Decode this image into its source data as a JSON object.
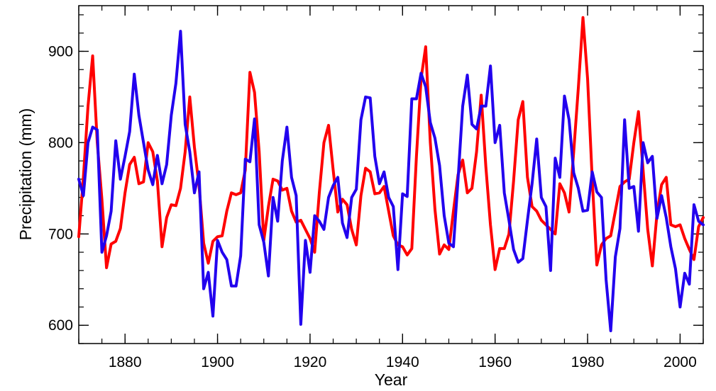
{
  "chart_data": {
    "type": "line",
    "title": "",
    "xlabel": "Year",
    "ylabel": "Precipitation (mm)",
    "xlim": [
      1870,
      2005
    ],
    "ylim": [
      580,
      950
    ],
    "x_ticks": [
      1880,
      1900,
      1920,
      1940,
      1960,
      1980,
      2000
    ],
    "y_ticks": [
      600,
      700,
      800,
      900
    ],
    "x_minor_step": 5,
    "y_minor_step": 20,
    "grid": false,
    "legend": "none",
    "colors": {
      "red_series": "#ff0000",
      "blue_series": "#2200ee",
      "axes": "#000000",
      "background": "#ffffff"
    },
    "x": [
      1870,
      1871,
      1872,
      1873,
      1874,
      1875,
      1876,
      1877,
      1878,
      1879,
      1880,
      1881,
      1882,
      1883,
      1884,
      1885,
      1886,
      1887,
      1888,
      1889,
      1890,
      1891,
      1892,
      1893,
      1894,
      1895,
      1896,
      1897,
      1898,
      1899,
      1900,
      1901,
      1902,
      1903,
      1904,
      1905,
      1906,
      1907,
      1908,
      1909,
      1910,
      1911,
      1912,
      1913,
      1914,
      1915,
      1916,
      1917,
      1918,
      1919,
      1920,
      1921,
      1922,
      1923,
      1924,
      1925,
      1926,
      1927,
      1928,
      1929,
      1930,
      1931,
      1932,
      1933,
      1934,
      1935,
      1936,
      1937,
      1938,
      1939,
      1940,
      1941,
      1942,
      1943,
      1944,
      1945,
      1946,
      1947,
      1948,
      1949,
      1950,
      1951,
      1952,
      1953,
      1954,
      1955,
      1956,
      1957,
      1958,
      1959,
      1960,
      1961,
      1962,
      1963,
      1964,
      1965,
      1966,
      1967,
      1968,
      1969,
      1970,
      1971,
      1972,
      1973,
      1974,
      1975,
      1976,
      1977,
      1978,
      1979,
      1980,
      1981,
      1982,
      1983,
      1984,
      1985,
      1986,
      1987,
      1988,
      1989,
      1990,
      1991,
      1992,
      1993,
      1994,
      1995,
      1996,
      1997,
      1998,
      1999,
      2000,
      2001,
      2002,
      2003,
      2004,
      2005
    ],
    "series": [
      {
        "color": "#ff0000",
        "values": [
          697,
          762,
          840,
          895,
          800,
          738,
          663,
          689,
          692,
          706,
          745,
          776,
          784,
          755,
          757,
          800,
          790,
          758,
          686,
          718,
          732,
          731,
          750,
          790,
          850,
          795,
          753,
          690,
          668,
          692,
          697,
          698,
          725,
          745,
          743,
          745,
          770,
          877,
          855,
          790,
          693,
          730,
          760,
          758,
          748,
          750,
          725,
          713,
          715,
          705,
          695,
          680,
          745,
          800,
          819,
          770,
          724,
          738,
          732,
          705,
          688,
          742,
          772,
          768,
          744,
          745,
          752,
          725,
          698,
          688,
          686,
          677,
          684,
          785,
          870,
          905,
          800,
          727,
          678,
          688,
          683,
          725,
          765,
          781,
          745,
          750,
          790,
          852,
          774,
          710,
          661,
          684,
          684,
          700,
          758,
          825,
          845,
          762,
          730,
          725,
          715,
          710,
          705,
          700,
          755,
          745,
          724,
          790,
          860,
          937,
          870,
          760,
          666,
          688,
          695,
          698,
          725,
          752,
          757,
          760,
          800,
          834,
          770,
          705,
          665,
          722,
          754,
          762,
          710,
          708,
          710,
          695,
          683,
          672,
          708,
          718
        ]
      },
      {
        "color": "#2200ee",
        "values": [
          760,
          742,
          800,
          817,
          814,
          680,
          698,
          725,
          802,
          760,
          785,
          812,
          875,
          830,
          800,
          770,
          754,
          786,
          755,
          776,
          830,
          865,
          922,
          820,
          790,
          745,
          768,
          640,
          658,
          610,
          693,
          680,
          672,
          643,
          643,
          676,
          782,
          779,
          826,
          710,
          691,
          654,
          740,
          714,
          780,
          817,
          762,
          742,
          601,
          693,
          658,
          720,
          714,
          705,
          740,
          753,
          762,
          712,
          696,
          740,
          749,
          825,
          850,
          849,
          785,
          755,
          768,
          740,
          730,
          661,
          744,
          741,
          848,
          848,
          876,
          861,
          822,
          805,
          775,
          720,
          690,
          686,
          760,
          840,
          874,
          820,
          815,
          840,
          840,
          884,
          800,
          819,
          745,
          715,
          683,
          669,
          673,
          715,
          755,
          804,
          740,
          730,
          660,
          783,
          762,
          851,
          825,
          767,
          750,
          725,
          726,
          768,
          746,
          740,
          650,
          594,
          675,
          706,
          825,
          750,
          752,
          703,
          800,
          778,
          785,
          717,
          742,
          718,
          686,
          662,
          620,
          657,
          645,
          732,
          714,
          710
        ]
      }
    ]
  }
}
